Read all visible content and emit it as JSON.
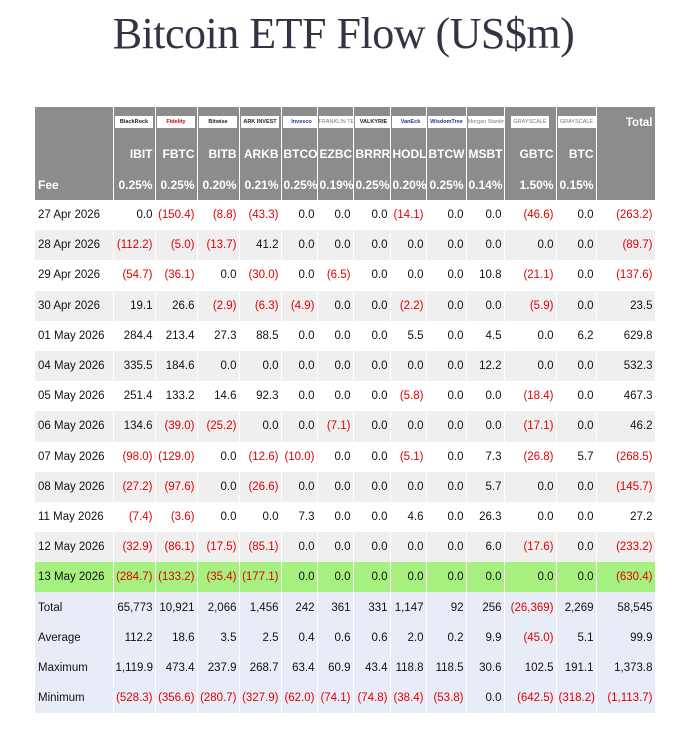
{
  "title": "Bitcoin ETF Flow (US$m)",
  "header": {
    "total_label": "Total",
    "fee_label": "Fee",
    "logos": [
      "BlackRock",
      "Fidelity",
      "Bitwise",
      "ARK INVEST",
      "Invesco",
      "FRANKLIN TEMPLETON",
      "VALKYRIE",
      "VanEck",
      "WisdomTree",
      "Morgan Stanley",
      "GRAYSCALE",
      "GRAYSCALE"
    ],
    "tickers": [
      "IBIT",
      "FBTC",
      "BITB",
      "ARKB",
      "BTCO",
      "EZBC",
      "BRRR",
      "HODL",
      "BTCW",
      "MSBT",
      "GBTC",
      "BTC"
    ],
    "fees": [
      "0.25%",
      "0.25%",
      "0.20%",
      "0.21%",
      "0.25%",
      "0.19%",
      "0.25%",
      "0.20%",
      "0.25%",
      "0.14%",
      "1.50%",
      "0.15%"
    ]
  },
  "rows": [
    {
      "date": "27 Apr 2026",
      "values": [
        "0.0",
        "(150.4)",
        "(8.8)",
        "(43.3)",
        "0.0",
        "0.0",
        "0.0",
        "(14.1)",
        "0.0",
        "0.0",
        "(46.6)",
        "0.0"
      ],
      "total": "(263.2)"
    },
    {
      "date": "28 Apr 2026",
      "values": [
        "(112.2)",
        "(5.0)",
        "(13.7)",
        "41.2",
        "0.0",
        "0.0",
        "0.0",
        "0.0",
        "0.0",
        "0.0",
        "0.0",
        "0.0"
      ],
      "total": "(89.7)"
    },
    {
      "date": "29 Apr 2026",
      "values": [
        "(54.7)",
        "(36.1)",
        "0.0",
        "(30.0)",
        "0.0",
        "(6.5)",
        "0.0",
        "0.0",
        "0.0",
        "10.8",
        "(21.1)",
        "0.0"
      ],
      "total": "(137.6)"
    },
    {
      "date": "30 Apr 2026",
      "values": [
        "19.1",
        "26.6",
        "(2.9)",
        "(6.3)",
        "(4.9)",
        "0.0",
        "0.0",
        "(2.2)",
        "0.0",
        "0.0",
        "(5.9)",
        "0.0"
      ],
      "total": "23.5"
    },
    {
      "date": "01 May 2026",
      "values": [
        "284.4",
        "213.4",
        "27.3",
        "88.5",
        "0.0",
        "0.0",
        "0.0",
        "5.5",
        "0.0",
        "4.5",
        "0.0",
        "6.2"
      ],
      "total": "629.8"
    },
    {
      "date": "04 May 2026",
      "values": [
        "335.5",
        "184.6",
        "0.0",
        "0.0",
        "0.0",
        "0.0",
        "0.0",
        "0.0",
        "0.0",
        "12.2",
        "0.0",
        "0.0"
      ],
      "total": "532.3"
    },
    {
      "date": "05 May 2026",
      "values": [
        "251.4",
        "133.2",
        "14.6",
        "92.3",
        "0.0",
        "0.0",
        "0.0",
        "(5.8)",
        "0.0",
        "0.0",
        "(18.4)",
        "0.0"
      ],
      "total": "467.3"
    },
    {
      "date": "06 May 2026",
      "values": [
        "134.6",
        "(39.0)",
        "(25.2)",
        "0.0",
        "0.0",
        "(7.1)",
        "0.0",
        "0.0",
        "0.0",
        "0.0",
        "(17.1)",
        "0.0"
      ],
      "total": "46.2"
    },
    {
      "date": "07 May 2026",
      "values": [
        "(98.0)",
        "(129.0)",
        "0.0",
        "(12.6)",
        "(10.0)",
        "0.0",
        "0.0",
        "(5.1)",
        "0.0",
        "7.3",
        "(26.8)",
        "5.7"
      ],
      "total": "(268.5)"
    },
    {
      "date": "08 May 2026",
      "values": [
        "(27.2)",
        "(97.6)",
        "0.0",
        "(26.6)",
        "0.0",
        "0.0",
        "0.0",
        "0.0",
        "0.0",
        "5.7",
        "0.0",
        "0.0"
      ],
      "total": "(145.7)"
    },
    {
      "date": "11 May 2026",
      "values": [
        "(7.4)",
        "(3.6)",
        "0.0",
        "0.0",
        "7.3",
        "0.0",
        "0.0",
        "4.6",
        "0.0",
        "26.3",
        "0.0",
        "0.0"
      ],
      "total": "27.2"
    },
    {
      "date": "12 May 2026",
      "values": [
        "(32.9)",
        "(86.1)",
        "(17.5)",
        "(85.1)",
        "0.0",
        "0.0",
        "0.0",
        "0.0",
        "0.0",
        "6.0",
        "(17.6)",
        "0.0"
      ],
      "total": "(233.2)"
    },
    {
      "date": "13 May 2026",
      "values": [
        "(284.7)",
        "(133.2)",
        "(35.4)",
        "(177.1)",
        "0.0",
        "0.0",
        "0.0",
        "0.0",
        "0.0",
        "0.0",
        "0.0",
        "0.0"
      ],
      "total": "(630.4)",
      "highlight": true
    }
  ],
  "stats": [
    {
      "label": "Total",
      "values": [
        "65,773",
        "10,921",
        "2,066",
        "1,456",
        "242",
        "361",
        "331",
        "1,147",
        "92",
        "256",
        "(26,369)",
        "2,269"
      ],
      "total": "58,545"
    },
    {
      "label": "Average",
      "values": [
        "112.2",
        "18.6",
        "3.5",
        "2.5",
        "0.4",
        "0.6",
        "0.6",
        "2.0",
        "0.2",
        "9.9",
        "(45.0)",
        "5.1"
      ],
      "total": "99.9"
    },
    {
      "label": "Maximum",
      "values": [
        "1,119.9",
        "473.4",
        "237.9",
        "268.7",
        "63.4",
        "60.9",
        "43.4",
        "118.8",
        "118.5",
        "30.6",
        "102.5",
        "191.1"
      ],
      "total": "1,373.8"
    },
    {
      "label": "Minimum",
      "values": [
        "(528.3)",
        "(356.6)",
        "(280.7)",
        "(327.9)",
        "(62.0)",
        "(74.1)",
        "(74.8)",
        "(38.4)",
        "(53.8)",
        "0.0",
        "(642.5)",
        "(318.2)"
      ],
      "total": "(1,113.7)"
    }
  ],
  "colors": {
    "header_bg": "#8c8c8c",
    "negative": "#e00000",
    "highlight": "#a6f07f",
    "alt_row": "#efefef",
    "stats_bg": "#e8ecf6"
  }
}
